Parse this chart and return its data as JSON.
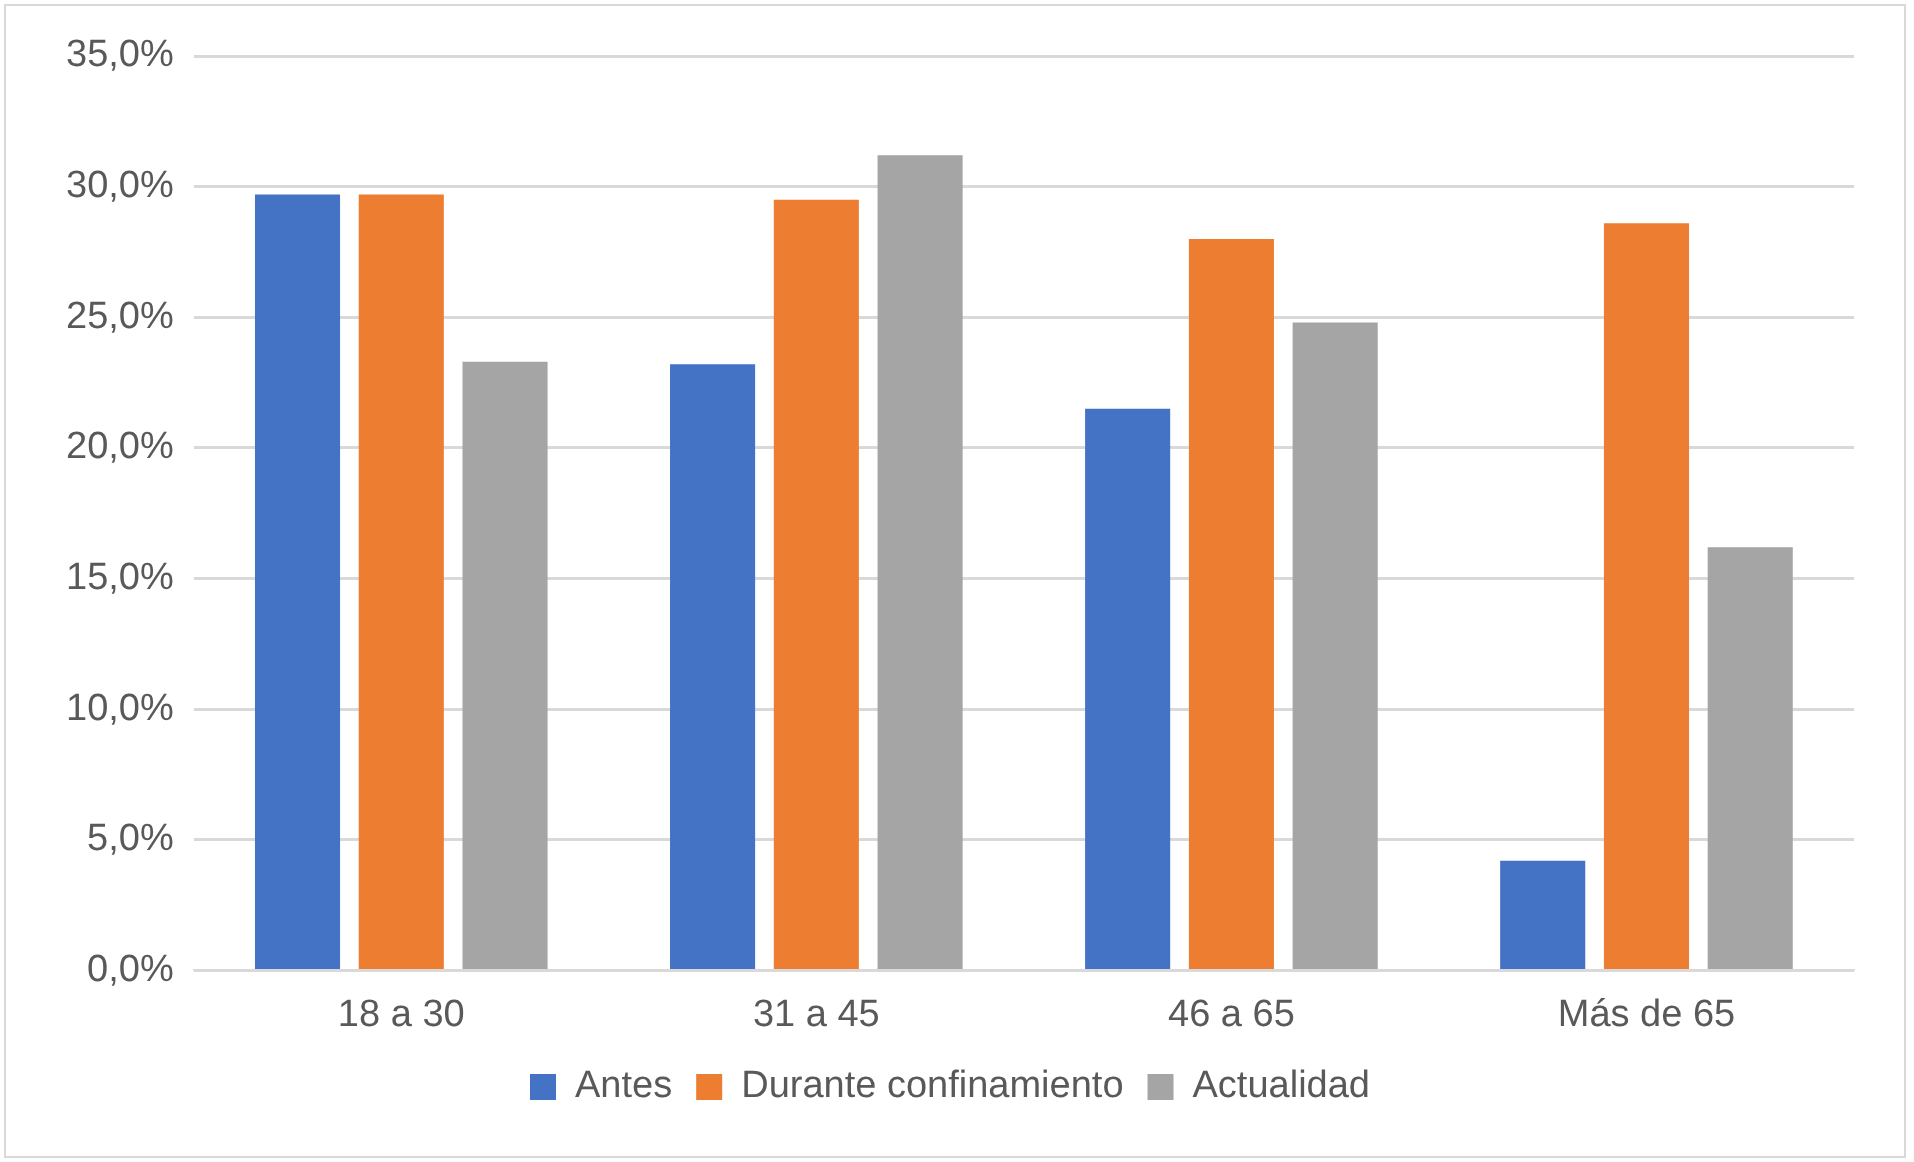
{
  "chart_data": {
    "type": "bar",
    "categories": [
      "18 a 30",
      "31 a 45",
      "46 a 65",
      "Más de 65"
    ],
    "series": [
      {
        "name": "Antes",
        "color": "#4472c4",
        "values": [
          29.7,
          23.2,
          21.5,
          4.2
        ]
      },
      {
        "name": "Durante confinamiento",
        "color": "#ed7d31",
        "values": [
          29.7,
          29.5,
          28.0,
          28.6
        ]
      },
      {
        "name": "Actualidad",
        "color": "#a5a5a5",
        "values": [
          23.3,
          31.2,
          24.8,
          16.2
        ]
      }
    ],
    "ylim": [
      0,
      35
    ],
    "yticks": [
      {
        "value": 0,
        "label": "0,0%"
      },
      {
        "value": 5,
        "label": "5,0%"
      },
      {
        "value": 10,
        "label": "10,0%"
      },
      {
        "value": 15,
        "label": "15,0%"
      },
      {
        "value": 20,
        "label": "20,0%"
      },
      {
        "value": 25,
        "label": "25,0%"
      },
      {
        "value": 30,
        "label": "30,0%"
      },
      {
        "value": 35,
        "label": "35,0%"
      }
    ],
    "grid": "y",
    "legend": "bottom"
  }
}
